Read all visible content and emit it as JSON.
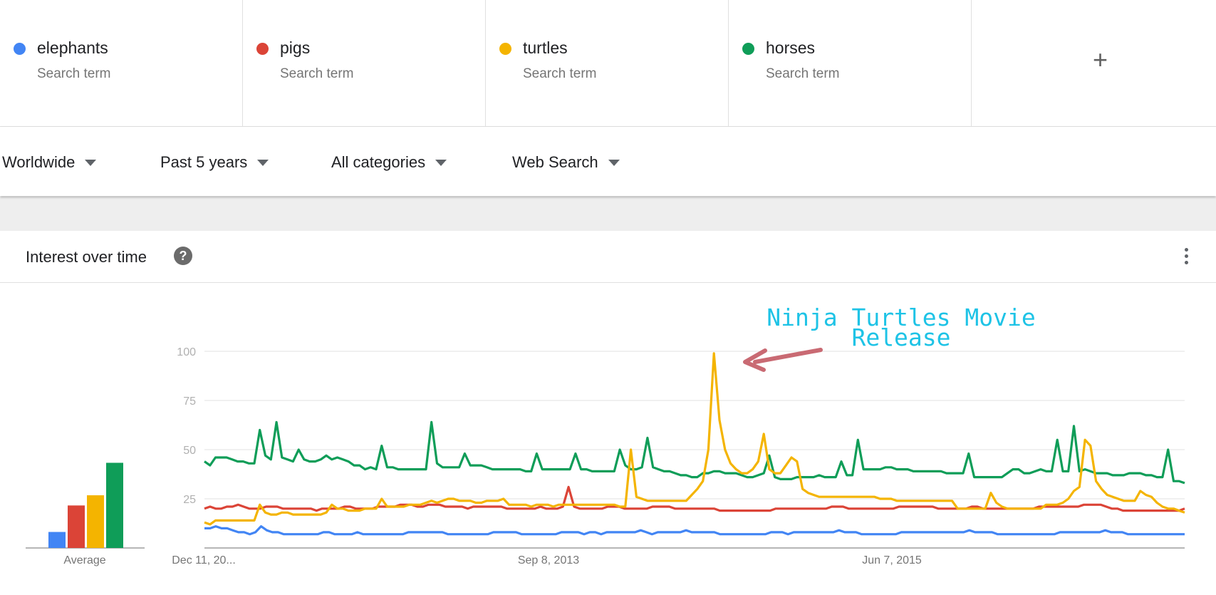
{
  "terms": [
    {
      "name": "elephants",
      "sub": "Search term",
      "color": "#4285f4"
    },
    {
      "name": "pigs",
      "sub": "Search term",
      "color": "#db4437"
    },
    {
      "name": "turtles",
      "sub": "Search term",
      "color": "#f4b400"
    },
    {
      "name": "horses",
      "sub": "Search term",
      "color": "#0f9d58"
    }
  ],
  "add_term_label": "+",
  "filters": {
    "region": "Worldwide",
    "time": "Past 5 years",
    "category": "All categories",
    "search_type": "Web Search"
  },
  "card": {
    "title": "Interest over time",
    "help_label": "?"
  },
  "annotation": "Ninja Turtles Movie\nRelease",
  "chart_data": {
    "type": "line",
    "title": "Interest over time",
    "ylim": [
      0,
      100
    ],
    "yticks": [
      25,
      50,
      75,
      100
    ],
    "x_tick_labels": [
      "Dec 11, 20...",
      "Sep 8, 2013",
      "Jun 7, 2015"
    ],
    "grid": true,
    "series": [
      {
        "name": "elephants",
        "color": "#4285f4",
        "values": [
          10,
          10,
          11,
          10,
          10,
          9,
          8,
          8,
          7,
          8,
          11,
          9,
          8,
          8,
          7,
          7,
          7,
          7,
          7,
          7,
          7,
          8,
          8,
          7,
          7,
          7,
          7,
          8,
          7,
          7,
          7,
          7,
          7,
          7,
          7,
          7,
          8,
          8,
          8,
          8,
          8,
          8,
          8,
          7,
          7,
          7,
          7,
          7,
          7,
          7,
          7,
          8,
          8,
          8,
          8,
          8,
          7,
          7,
          7,
          7,
          7,
          7,
          7,
          8,
          8,
          8,
          8,
          7,
          8,
          8,
          7,
          8,
          8,
          8,
          8,
          8,
          8,
          9,
          8,
          7,
          8,
          8,
          8,
          8,
          8,
          9,
          8,
          8,
          8,
          8,
          8,
          7,
          7,
          7,
          7,
          7,
          7,
          7,
          7,
          7,
          8,
          8,
          8,
          7,
          8,
          8,
          8,
          8,
          8,
          8,
          8,
          8,
          9,
          8,
          8,
          8,
          7,
          7,
          7,
          7,
          7,
          7,
          7,
          8,
          8,
          8,
          8,
          8,
          8,
          8,
          8,
          8,
          8,
          8,
          8,
          9,
          8,
          8,
          8,
          8,
          7,
          7,
          7,
          7,
          7,
          7,
          7,
          7,
          7,
          7,
          7,
          8,
          8,
          8,
          8,
          8,
          8,
          8,
          8,
          9,
          8,
          8,
          8,
          7,
          7,
          7,
          7,
          7,
          7,
          7,
          7,
          7,
          7,
          7
        ]
      },
      {
        "name": "pigs",
        "color": "#db4437",
        "values": [
          20,
          21,
          20,
          20,
          21,
          21,
          22,
          21,
          20,
          20,
          20,
          21,
          21,
          21,
          20,
          20,
          20,
          20,
          20,
          20,
          19,
          20,
          20,
          20,
          20,
          21,
          21,
          20,
          20,
          20,
          20,
          21,
          21,
          21,
          21,
          22,
          22,
          22,
          21,
          21,
          22,
          22,
          22,
          21,
          21,
          21,
          21,
          20,
          21,
          21,
          21,
          21,
          21,
          21,
          20,
          20,
          20,
          20,
          20,
          20,
          21,
          20,
          20,
          20,
          21,
          31,
          21,
          20,
          20,
          20,
          20,
          20,
          21,
          21,
          21,
          20,
          20,
          20,
          20,
          20,
          21,
          21,
          21,
          21,
          20,
          20,
          20,
          20,
          20,
          20,
          20,
          20,
          19,
          19,
          19,
          19,
          19,
          19,
          19,
          19,
          19,
          19,
          20,
          20,
          20,
          20,
          20,
          20,
          20,
          20,
          20,
          20,
          21,
          21,
          21,
          20,
          20,
          20,
          20,
          20,
          20,
          20,
          20,
          20,
          21,
          21,
          21,
          21,
          21,
          21,
          21,
          20,
          20,
          20,
          20,
          20,
          20,
          21,
          21,
          20,
          20,
          20,
          20,
          20,
          20,
          20,
          20,
          20,
          20,
          21,
          21,
          21,
          21,
          21,
          21,
          21,
          21,
          22,
          22,
          22,
          22,
          21,
          20,
          20,
          19,
          19,
          19,
          19,
          19,
          19,
          19,
          19,
          19,
          19,
          19,
          20
        ]
      },
      {
        "name": "turtles",
        "color": "#f4b400",
        "values": [
          13,
          12,
          14,
          14,
          14,
          14,
          14,
          14,
          14,
          14,
          22,
          18,
          17,
          17,
          18,
          18,
          17,
          17,
          17,
          17,
          17,
          17,
          18,
          22,
          20,
          20,
          19,
          19,
          19,
          20,
          20,
          20,
          25,
          21,
          21,
          21,
          21,
          22,
          22,
          22,
          23,
          24,
          23,
          24,
          25,
          25,
          24,
          24,
          24,
          23,
          23,
          24,
          24,
          24,
          25,
          22,
          22,
          22,
          22,
          21,
          22,
          22,
          22,
          21,
          22,
          22,
          22,
          22,
          22,
          22,
          22,
          22,
          22,
          22,
          22,
          21,
          21,
          50,
          26,
          25,
          24,
          24,
          24,
          24,
          24,
          24,
          24,
          24,
          27,
          30,
          34,
          50,
          99,
          65,
          50,
          43,
          40,
          38,
          38,
          40,
          44,
          58,
          40,
          38,
          38,
          42,
          46,
          44,
          30,
          28,
          27,
          26,
          26,
          26,
          26,
          26,
          26,
          26,
          26,
          26,
          26,
          26,
          25,
          25,
          25,
          24,
          24,
          24,
          24,
          24,
          24,
          24,
          24,
          24,
          24,
          24,
          20,
          20,
          20,
          20,
          20,
          20,
          28,
          23,
          21,
          20,
          20,
          20,
          20,
          20,
          20,
          20,
          22,
          22,
          22,
          23,
          25,
          29,
          31,
          55,
          52,
          34,
          30,
          27,
          26,
          25,
          24,
          24,
          24,
          29,
          27,
          26,
          23,
          21,
          20,
          20,
          19,
          18
        ]
      },
      {
        "name": "horses",
        "color": "#0f9d58",
        "values": [
          44,
          42,
          46,
          46,
          46,
          45,
          44,
          44,
          43,
          43,
          60,
          47,
          45,
          64,
          46,
          45,
          44,
          50,
          45,
          44,
          44,
          45,
          47,
          45,
          46,
          45,
          44,
          42,
          42,
          40,
          41,
          40,
          52,
          41,
          41,
          40,
          40,
          40,
          40,
          40,
          40,
          64,
          43,
          41,
          41,
          41,
          41,
          48,
          42,
          42,
          42,
          41,
          40,
          40,
          40,
          40,
          40,
          40,
          39,
          39,
          48,
          40,
          40,
          40,
          40,
          40,
          40,
          48,
          40,
          40,
          39,
          39,
          39,
          39,
          39,
          50,
          42,
          40,
          40,
          41,
          56,
          41,
          40,
          39,
          39,
          38,
          37,
          37,
          36,
          36,
          38,
          38,
          39,
          39,
          38,
          38,
          38,
          37,
          36,
          36,
          37,
          38,
          47,
          36,
          35,
          35,
          35,
          36,
          36,
          36,
          36,
          37,
          36,
          36,
          36,
          44,
          37,
          37,
          55,
          40,
          40,
          40,
          40,
          41,
          41,
          40,
          40,
          40,
          39,
          39,
          39,
          39,
          39,
          39,
          38,
          38,
          38,
          38,
          48,
          36,
          36,
          36,
          36,
          36,
          36,
          38,
          40,
          40,
          38,
          38,
          39,
          40,
          39,
          39,
          55,
          39,
          39,
          62,
          39,
          40,
          39,
          38,
          38,
          38,
          37,
          37,
          37,
          38,
          38,
          38,
          37,
          37,
          36,
          36,
          50,
          34,
          34,
          33
        ]
      }
    ]
  }
}
